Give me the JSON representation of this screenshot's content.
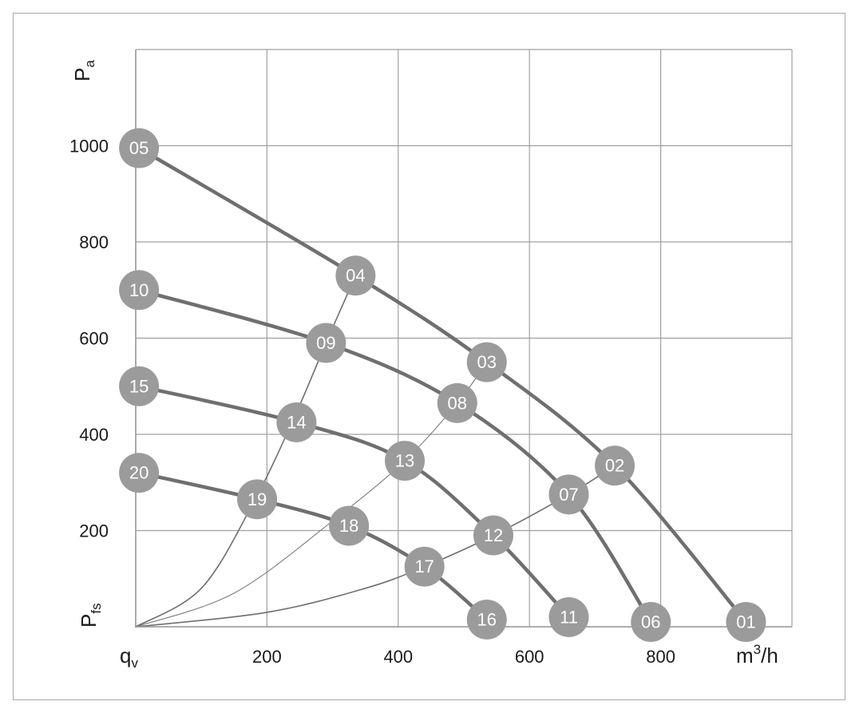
{
  "chart_data": {
    "type": "line",
    "title": "",
    "y_unit_main": "P",
    "y_unit_sub_top": "a",
    "y_unit_sub_bottom": "fs",
    "x_unit_main": "q",
    "x_unit_sub": "v",
    "x_unit_label": "m",
    "x_unit_sup": "3",
    "x_unit_tail": "/h",
    "xlim": [
      0,
      1000
    ],
    "ylim": [
      0,
      1200
    ],
    "x_ticks": [
      200,
      400,
      600,
      800
    ],
    "x_tick_labels": [
      "200",
      "400",
      "600",
      "800"
    ],
    "y_ticks": [
      200,
      400,
      600,
      800,
      1000
    ],
    "y_tick_labels": [
      "200",
      "400",
      "600",
      "800",
      "1000"
    ],
    "grid": true,
    "points": [
      {
        "label": "05",
        "x": 5,
        "y": 995
      },
      {
        "label": "04",
        "x": 335,
        "y": 730
      },
      {
        "label": "03",
        "x": 535,
        "y": 550
      },
      {
        "label": "02",
        "x": 730,
        "y": 335
      },
      {
        "label": "01",
        "x": 930,
        "y": 10
      },
      {
        "label": "10",
        "x": 5,
        "y": 700
      },
      {
        "label": "09",
        "x": 290,
        "y": 590
      },
      {
        "label": "08",
        "x": 490,
        "y": 465
      },
      {
        "label": "07",
        "x": 660,
        "y": 275
      },
      {
        "label": "06",
        "x": 785,
        "y": 10
      },
      {
        "label": "15",
        "x": 5,
        "y": 500
      },
      {
        "label": "14",
        "x": 245,
        "y": 425
      },
      {
        "label": "13",
        "x": 410,
        "y": 345
      },
      {
        "label": "12",
        "x": 545,
        "y": 190
      },
      {
        "label": "11",
        "x": 660,
        "y": 20
      },
      {
        "label": "20",
        "x": 5,
        "y": 320
      },
      {
        "label": "19",
        "x": 185,
        "y": 265
      },
      {
        "label": "18",
        "x": 325,
        "y": 210
      },
      {
        "label": "17",
        "x": 440,
        "y": 125
      },
      {
        "label": "16",
        "x": 535,
        "y": 15
      }
    ],
    "fan_curves": [
      {
        "points": [
          "05",
          "04",
          "03",
          "02",
          "01"
        ]
      },
      {
        "points": [
          "10",
          "09",
          "08",
          "07",
          "06"
        ]
      },
      {
        "points": [
          "15",
          "14",
          "13",
          "12",
          "11"
        ]
      },
      {
        "points": [
          "20",
          "19",
          "18",
          "17",
          "16"
        ]
      }
    ],
    "system_curves": [
      {
        "x": [
          0,
          100,
          180,
          240,
          290,
          335
        ],
        "y": [
          0,
          80,
          260,
          430,
          590,
          730
        ]
      },
      {
        "x": [
          0,
          150,
          300,
          410,
          490,
          535
        ],
        "y": [
          0,
          70,
          220,
          345,
          465,
          550
        ]
      },
      {
        "x": [
          0,
          200,
          350,
          440,
          545,
          660,
          730
        ],
        "y": [
          0,
          30,
          80,
          125,
          190,
          275,
          335
        ]
      }
    ]
  }
}
